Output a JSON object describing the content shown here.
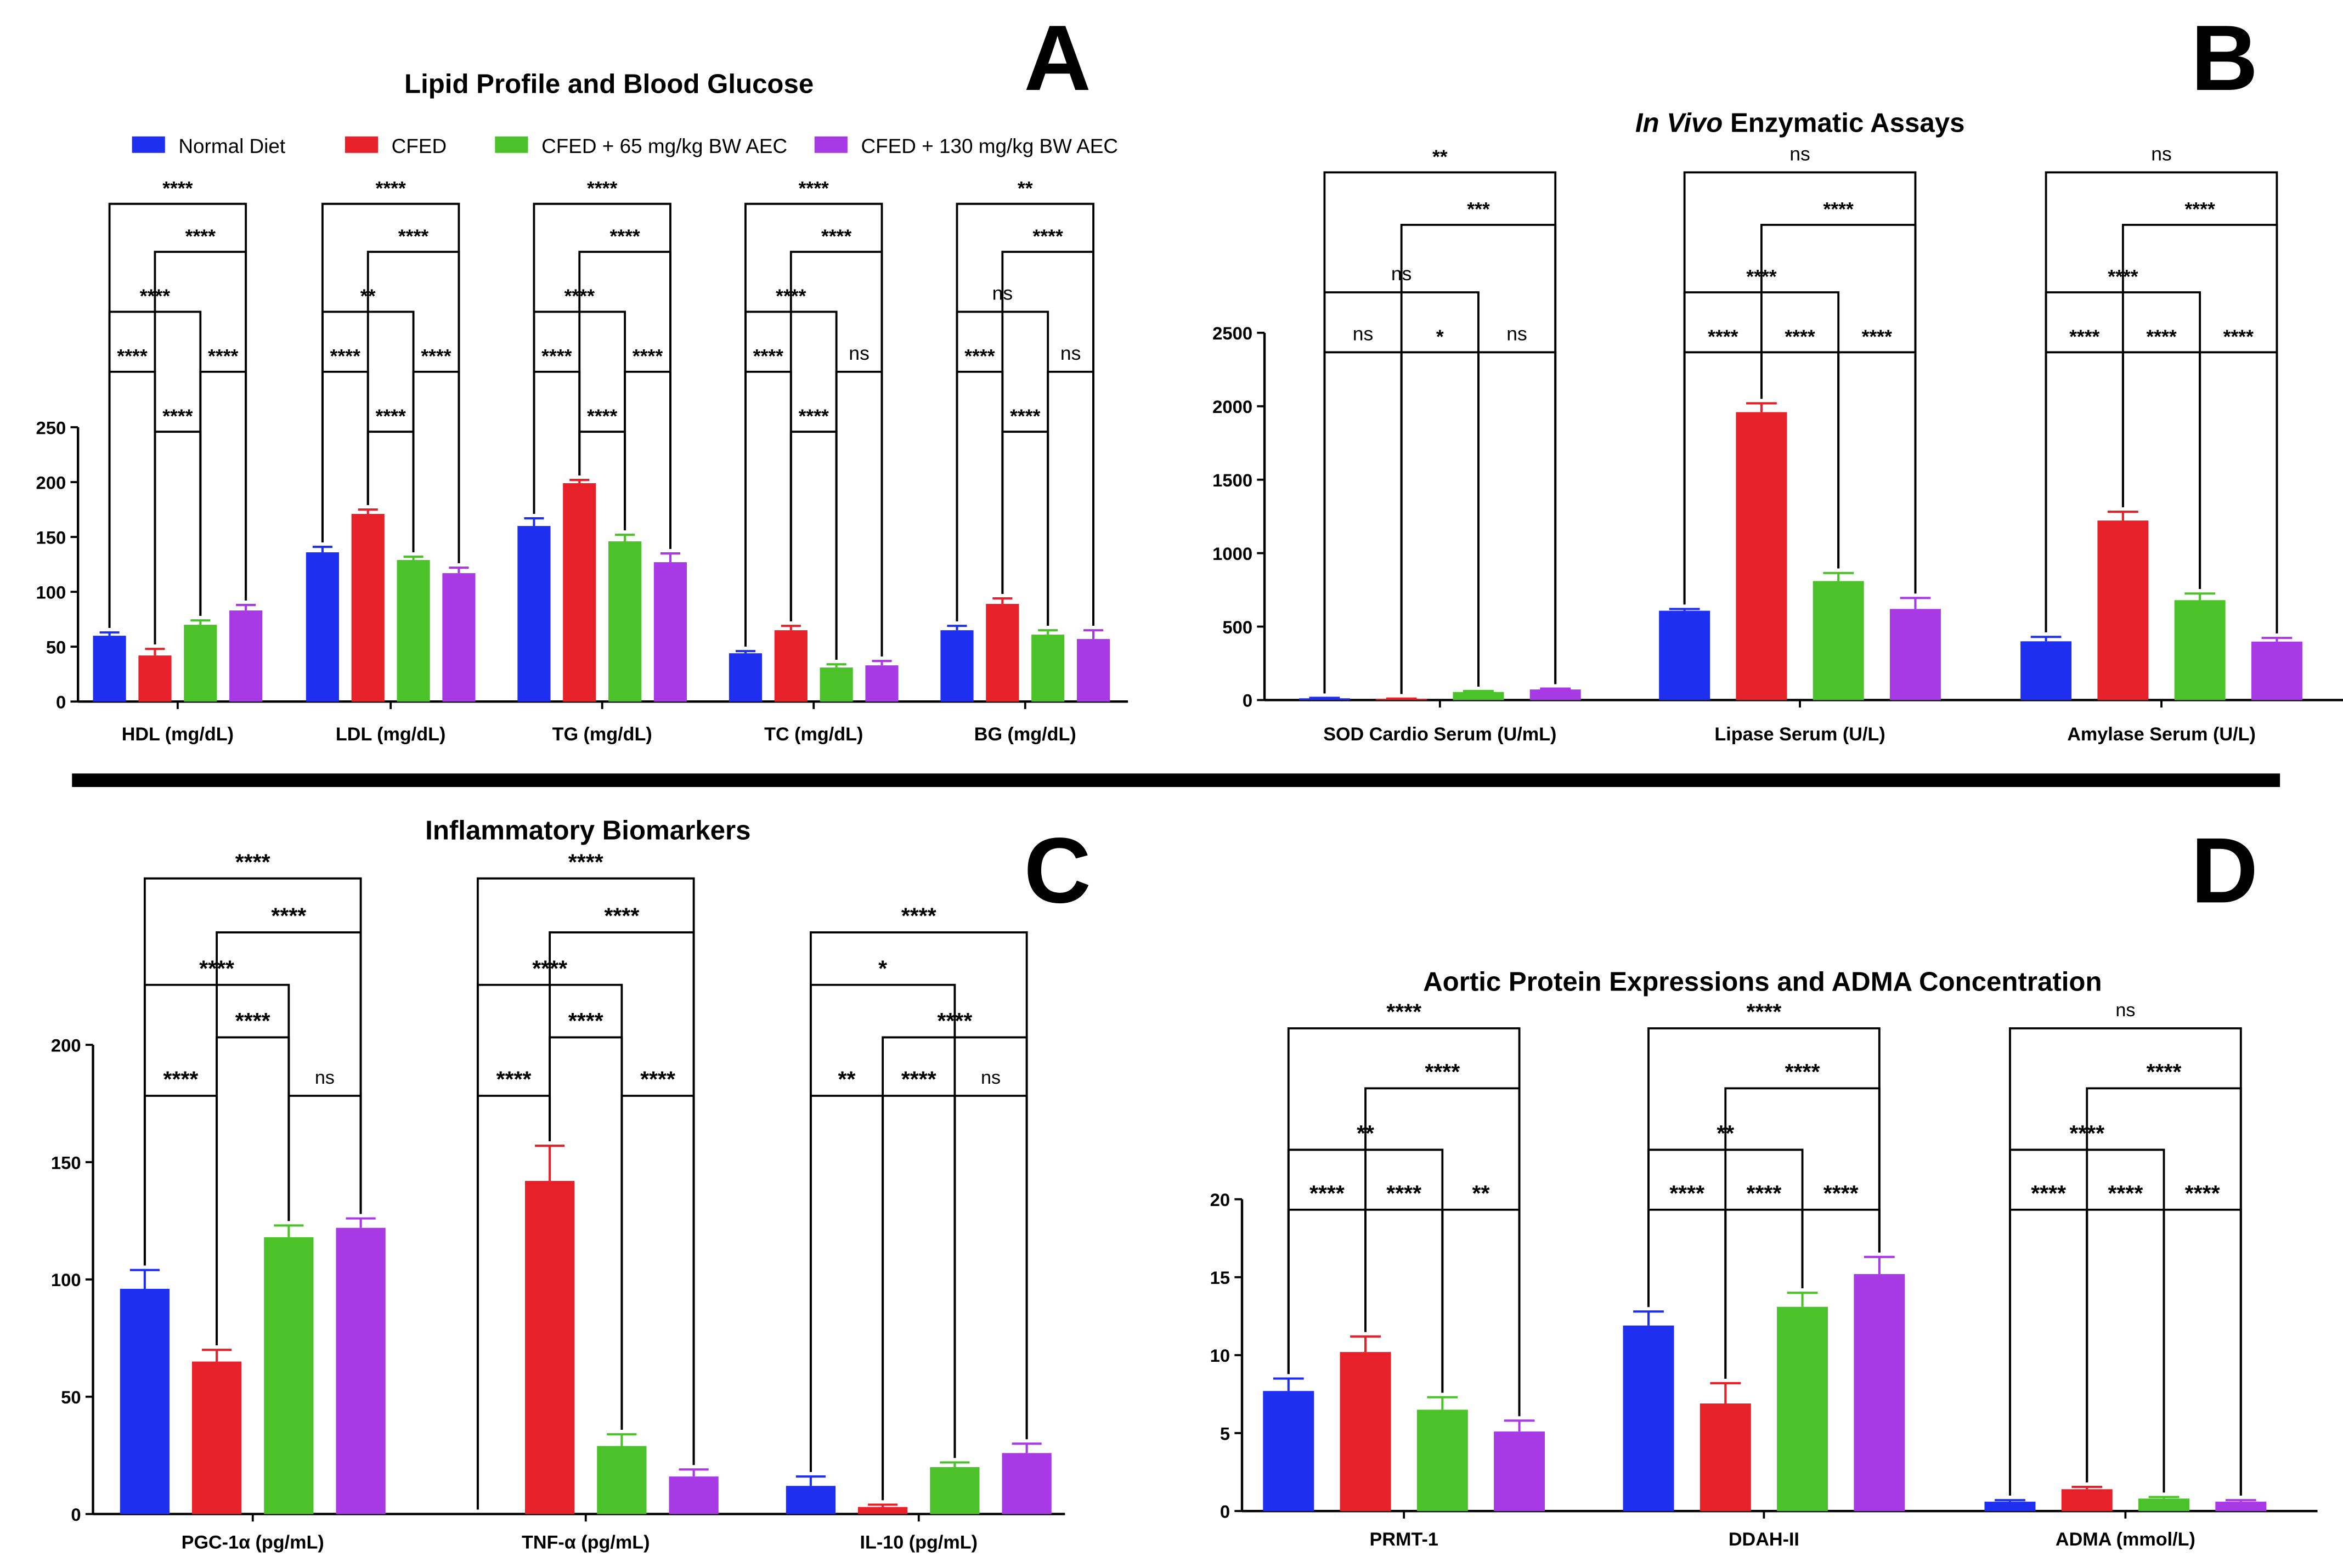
{
  "panels": [
    {
      "letter": "A",
      "title": "Lipid Profile and Blood Glucose"
    },
    {
      "letter": "B",
      "title_italic": "In Vivo",
      "title_rest": " Enzymatic Assays"
    },
    {
      "letter": "C",
      "title": "Inflammatory Biomarkers"
    },
    {
      "letter": "D",
      "title": "Aortic Protein Expressions and ADMA Concentration"
    }
  ],
  "legend": [
    {
      "label": "Normal Diet",
      "color": "#1f2ff0"
    },
    {
      "label": "CFED",
      "color": "#e6212a"
    },
    {
      "label": "CFED + 65 mg/kg BW AEC",
      "color": "#4cc22a"
    },
    {
      "label": "CFED + 130 mg/kg BW AEC",
      "color": "#a83ae6"
    }
  ],
  "chart_data": [
    {
      "type": "bar",
      "title": "Lipid Profile and Blood Glucose",
      "series_names": [
        "Normal Diet",
        "CFED",
        "CFED + 65 mg/kg BW AEC",
        "CFED + 130 mg/kg BW AEC"
      ],
      "ylim": [
        0,
        250
      ],
      "yticks": [
        0,
        50,
        100,
        150,
        200,
        250
      ],
      "groups": [
        {
          "label": "HDL (mg/dL)",
          "values": [
            60,
            42,
            70,
            83
          ],
          "errors": [
            3,
            6,
            4,
            5
          ],
          "sig": [
            {
              "a": 0,
              "b": 1,
              "t": "****"
            },
            {
              "a": 2,
              "b": 3,
              "t": "****"
            },
            {
              "a": 1,
              "b": 2,
              "t": "****"
            },
            {
              "a": 0,
              "b": 2,
              "t": "****"
            },
            {
              "a": 1,
              "b": 3,
              "t": "****"
            },
            {
              "a": 0,
              "b": 3,
              "t": "****"
            }
          ]
        },
        {
          "label": "LDL (mg/dL)",
          "values": [
            136,
            171,
            129,
            117
          ],
          "errors": [
            5,
            4,
            3,
            5
          ],
          "sig": [
            {
              "a": 0,
              "b": 1,
              "t": "****"
            },
            {
              "a": 2,
              "b": 3,
              "t": "****"
            },
            {
              "a": 1,
              "b": 2,
              "t": "****"
            },
            {
              "a": 0,
              "b": 2,
              "t": "**"
            },
            {
              "a": 1,
              "b": 3,
              "t": "****"
            },
            {
              "a": 0,
              "b": 3,
              "t": "****"
            }
          ]
        },
        {
          "label": "TG (mg/dL)",
          "values": [
            160,
            199,
            146,
            127
          ],
          "errors": [
            7,
            3,
            6,
            8
          ],
          "sig": [
            {
              "a": 0,
              "b": 1,
              "t": "****"
            },
            {
              "a": 2,
              "b": 3,
              "t": "****"
            },
            {
              "a": 1,
              "b": 2,
              "t": "****"
            },
            {
              "a": 0,
              "b": 2,
              "t": "****"
            },
            {
              "a": 1,
              "b": 3,
              "t": "****"
            },
            {
              "a": 0,
              "b": 3,
              "t": "****"
            }
          ]
        },
        {
          "label": "TC (mg/dL)",
          "values": [
            44,
            65,
            31,
            33
          ],
          "errors": [
            2,
            4,
            3,
            4
          ],
          "sig": [
            {
              "a": 0,
              "b": 1,
              "t": "****"
            },
            {
              "a": 2,
              "b": 3,
              "t": "ns"
            },
            {
              "a": 1,
              "b": 2,
              "t": "****"
            },
            {
              "a": 0,
              "b": 2,
              "t": "****"
            },
            {
              "a": 1,
              "b": 3,
              "t": "****"
            },
            {
              "a": 0,
              "b": 3,
              "t": "****"
            }
          ]
        },
        {
          "label": "BG (mg/dL)",
          "values": [
            65,
            89,
            61,
            57
          ],
          "errors": [
            4,
            5,
            4,
            8
          ],
          "sig": [
            {
              "a": 0,
              "b": 1,
              "t": "****"
            },
            {
              "a": 2,
              "b": 3,
              "t": "ns"
            },
            {
              "a": 1,
              "b": 2,
              "t": "****"
            },
            {
              "a": 0,
              "b": 2,
              "t": "ns"
            },
            {
              "a": 1,
              "b": 3,
              "t": "****"
            },
            {
              "a": 0,
              "b": 3,
              "t": "**"
            }
          ]
        }
      ]
    },
    {
      "type": "bar",
      "title": "In Vivo Enzymatic Assays",
      "ylim": [
        0,
        2500
      ],
      "yticks": [
        0,
        500,
        1000,
        1500,
        2000,
        2500
      ],
      "groups": [
        {
          "label": "SOD Cardio Serum (U/mL)",
          "values": [
            12,
            8,
            55,
            72
          ],
          "errors": [
            3,
            2,
            6,
            6
          ],
          "sig": [
            {
              "a": 0,
              "b": 1,
              "t": "ns"
            },
            {
              "a": 1,
              "b": 2,
              "t": "*"
            },
            {
              "a": 2,
              "b": 3,
              "t": "ns"
            },
            {
              "a": 0,
              "b": 2,
              "t": "ns"
            },
            {
              "a": 1,
              "b": 3,
              "t": "***"
            },
            {
              "a": 0,
              "b": 3,
              "t": "**"
            }
          ]
        },
        {
          "label": "Lipase Serum (U/L)",
          "values": [
            608,
            1960,
            810,
            620
          ],
          "errors": [
            12,
            60,
            55,
            75
          ],
          "sig": [
            {
              "a": 0,
              "b": 1,
              "t": "****"
            },
            {
              "a": 1,
              "b": 2,
              "t": "****"
            },
            {
              "a": 2,
              "b": 3,
              "t": "****"
            },
            {
              "a": 0,
              "b": 2,
              "t": "****"
            },
            {
              "a": 1,
              "b": 3,
              "t": "****"
            },
            {
              "a": 0,
              "b": 3,
              "t": "ns"
            }
          ]
        },
        {
          "label": "Amylase Serum (U/L)",
          "values": [
            400,
            1222,
            680,
            398
          ],
          "errors": [
            30,
            60,
            45,
            25
          ],
          "sig": [
            {
              "a": 0,
              "b": 1,
              "t": "****"
            },
            {
              "a": 1,
              "b": 2,
              "t": "****"
            },
            {
              "a": 2,
              "b": 3,
              "t": "****"
            },
            {
              "a": 0,
              "b": 2,
              "t": "****"
            },
            {
              "a": 1,
              "b": 3,
              "t": "****"
            },
            {
              "a": 0,
              "b": 3,
              "t": "ns"
            }
          ]
        }
      ]
    },
    {
      "type": "bar",
      "title": "Inflammatory Biomarkers",
      "ylim": [
        0,
        200
      ],
      "yticks": [
        0,
        50,
        100,
        150,
        200
      ],
      "groups": [
        {
          "label": "PGC-1α (pg/mL)",
          "values": [
            96,
            65,
            118,
            122
          ],
          "errors": [
            8,
            5,
            5,
            4
          ],
          "sig": [
            {
              "a": 0,
              "b": 1,
              "t": "****"
            },
            {
              "a": 2,
              "b": 3,
              "t": "ns"
            },
            {
              "a": 1,
              "b": 2,
              "t": "****"
            },
            {
              "a": 0,
              "b": 2,
              "t": "****"
            },
            {
              "a": 1,
              "b": 3,
              "t": "****"
            },
            {
              "a": 0,
              "b": 3,
              "t": "****"
            }
          ]
        },
        {
          "label": "TNF-α (pg/mL)",
          "values": [
            0,
            142,
            29,
            16
          ],
          "errors": [
            0,
            15,
            5,
            3
          ],
          "sig": [
            {
              "a": 0,
              "b": 1,
              "t": "****"
            },
            {
              "a": 2,
              "b": 3,
              "t": "****"
            },
            {
              "a": 1,
              "b": 2,
              "t": "****"
            },
            {
              "a": 0,
              "b": 2,
              "t": "****"
            },
            {
              "a": 1,
              "b": 3,
              "t": "****"
            },
            {
              "a": 0,
              "b": 3,
              "t": "****"
            }
          ]
        },
        {
          "label": "IL-10 (pg/mL)",
          "values": [
            12,
            3,
            20,
            26
          ],
          "errors": [
            4,
            1,
            2,
            4
          ],
          "sig": [
            {
              "a": 0,
              "b": 1,
              "t": "**"
            },
            {
              "a": 1,
              "b": 2,
              "t": "****"
            },
            {
              "a": 2,
              "b": 3,
              "t": "ns"
            },
            {
              "a": 1,
              "b": 3,
              "t": "****"
            },
            {
              "a": 0,
              "b": 2,
              "t": "*"
            },
            {
              "a": 0,
              "b": 3,
              "t": "****"
            }
          ]
        }
      ]
    },
    {
      "type": "bar",
      "title": "Aortic Protein Expressions and ADMA Concentration",
      "ylim": [
        0,
        20
      ],
      "yticks": [
        0,
        5,
        10,
        15,
        20
      ],
      "groups": [
        {
          "label": "PRMT-1",
          "values": [
            7.7,
            10.2,
            6.5,
            5.1
          ],
          "errors": [
            0.8,
            1.0,
            0.8,
            0.7
          ],
          "sig": [
            {
              "a": 0,
              "b": 1,
              "t": "****"
            },
            {
              "a": 1,
              "b": 2,
              "t": "****"
            },
            {
              "a": 2,
              "b": 3,
              "t": "**"
            },
            {
              "a": 0,
              "b": 2,
              "t": "**"
            },
            {
              "a": 1,
              "b": 3,
              "t": "****"
            },
            {
              "a": 0,
              "b": 3,
              "t": "****"
            }
          ]
        },
        {
          "label": "DDAH-II",
          "values": [
            11.9,
            6.9,
            13.1,
            15.2
          ],
          "errors": [
            0.9,
            1.3,
            0.9,
            1.1
          ],
          "sig": [
            {
              "a": 0,
              "b": 1,
              "t": "****"
            },
            {
              "a": 1,
              "b": 2,
              "t": "****"
            },
            {
              "a": 2,
              "b": 3,
              "t": "****"
            },
            {
              "a": 0,
              "b": 2,
              "t": "**"
            },
            {
              "a": 1,
              "b": 3,
              "t": "****"
            },
            {
              "a": 0,
              "b": 3,
              "t": "****"
            }
          ]
        },
        {
          "label": "ADMA (mmol/L)",
          "values": [
            0.6,
            1.4,
            0.8,
            0.6
          ],
          "errors": [
            0.1,
            0.15,
            0.1,
            0.1
          ],
          "sig": [
            {
              "a": 0,
              "b": 1,
              "t": "****"
            },
            {
              "a": 1,
              "b": 2,
              "t": "****"
            },
            {
              "a": 2,
              "b": 3,
              "t": "****"
            },
            {
              "a": 0,
              "b": 2,
              "t": "****"
            },
            {
              "a": 1,
              "b": 3,
              "t": "****"
            },
            {
              "a": 0,
              "b": 3,
              "t": "ns"
            }
          ]
        }
      ]
    }
  ]
}
